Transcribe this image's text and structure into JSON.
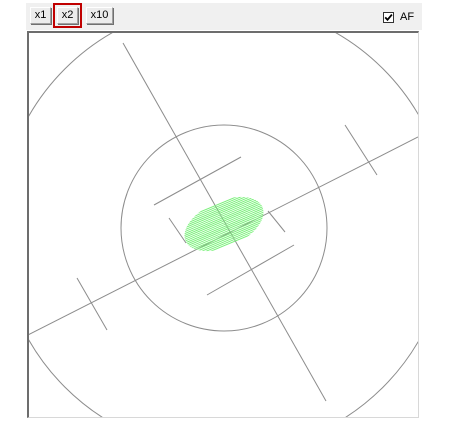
{
  "toolbar": {
    "zoom_buttons": [
      {
        "id": "x1",
        "label": "x1",
        "selected": false
      },
      {
        "id": "x2",
        "label": "x2",
        "selected": true
      },
      {
        "id": "x10",
        "label": "x10",
        "selected": false
      }
    ],
    "autofocus": {
      "label": "AF",
      "checked": true
    }
  },
  "colors": {
    "grid_line": "#8c8c8c",
    "spot": "#7cf07c",
    "selection_outline": "#c00000"
  }
}
